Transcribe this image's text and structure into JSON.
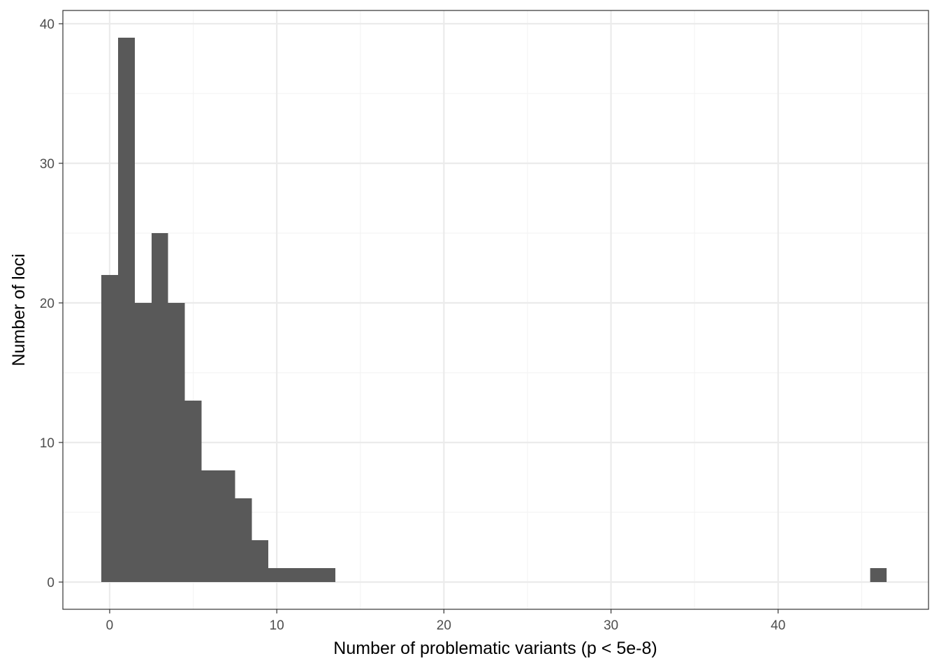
{
  "chart_data": {
    "type": "bar",
    "subtype": "histogram",
    "title": "",
    "xlabel": "Number of problematic variants (p < 5e-8)",
    "ylabel": "Number of loci",
    "xlim": [
      -2.8,
      49.0
    ],
    "ylim": [
      -1.95,
      40.95
    ],
    "x_ticks": [
      0,
      10,
      20,
      30,
      40
    ],
    "y_ticks": [
      0,
      10,
      20,
      30,
      40
    ],
    "x_tick_labels": [
      "0",
      "10",
      "20",
      "30",
      "40"
    ],
    "y_tick_labels": [
      "0",
      "10",
      "20",
      "30",
      "40"
    ],
    "bin_width": 1,
    "bins": [
      {
        "x": 0,
        "count": 22
      },
      {
        "x": 1,
        "count": 39
      },
      {
        "x": 2,
        "count": 20
      },
      {
        "x": 3,
        "count": 25
      },
      {
        "x": 4,
        "count": 20
      },
      {
        "x": 5,
        "count": 13
      },
      {
        "x": 6,
        "count": 8
      },
      {
        "x": 7,
        "count": 8
      },
      {
        "x": 8,
        "count": 6
      },
      {
        "x": 9,
        "count": 3
      },
      {
        "x": 10,
        "count": 1
      },
      {
        "x": 11,
        "count": 1
      },
      {
        "x": 12,
        "count": 1
      },
      {
        "x": 13,
        "count": 1
      },
      {
        "x": 46,
        "count": 1
      }
    ],
    "grid": true,
    "legend": "none",
    "colors": {
      "bar": "#595959",
      "panel_border": "#333333",
      "grid_major": "#ebebeb",
      "grid_minor": "#f4f4f4",
      "background": "#ffffff"
    }
  }
}
